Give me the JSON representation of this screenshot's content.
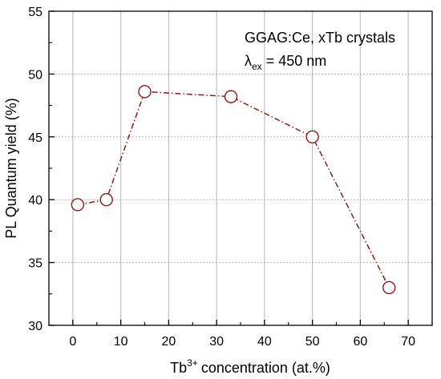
{
  "chart_data": {
    "type": "line",
    "xlabel": "concentration (at.%)",
    "xlabel_prefix": "Tb",
    "xlabel_superscript": "3+",
    "ylabel": "PL Quantum yield (%)",
    "xlim": [
      -5,
      75
    ],
    "ylim": [
      30,
      55
    ],
    "xticks": [
      0,
      10,
      20,
      30,
      40,
      50,
      60,
      70
    ],
    "yticks": [
      30,
      35,
      40,
      45,
      50,
      55
    ],
    "grid": "vertical",
    "annotation_line1": "GGAG:Ce, xTb crystals",
    "annotation_lambda": "λ",
    "annotation_subscript": "ex",
    "annotation_value": " = 450 nm",
    "series": [
      {
        "x": [
          1,
          7,
          15,
          33,
          50,
          66
        ],
        "y": [
          39.6,
          40.0,
          48.6,
          48.2,
          45.0,
          33.0
        ],
        "color": "#8b1a1a",
        "marker": "circle"
      }
    ]
  }
}
